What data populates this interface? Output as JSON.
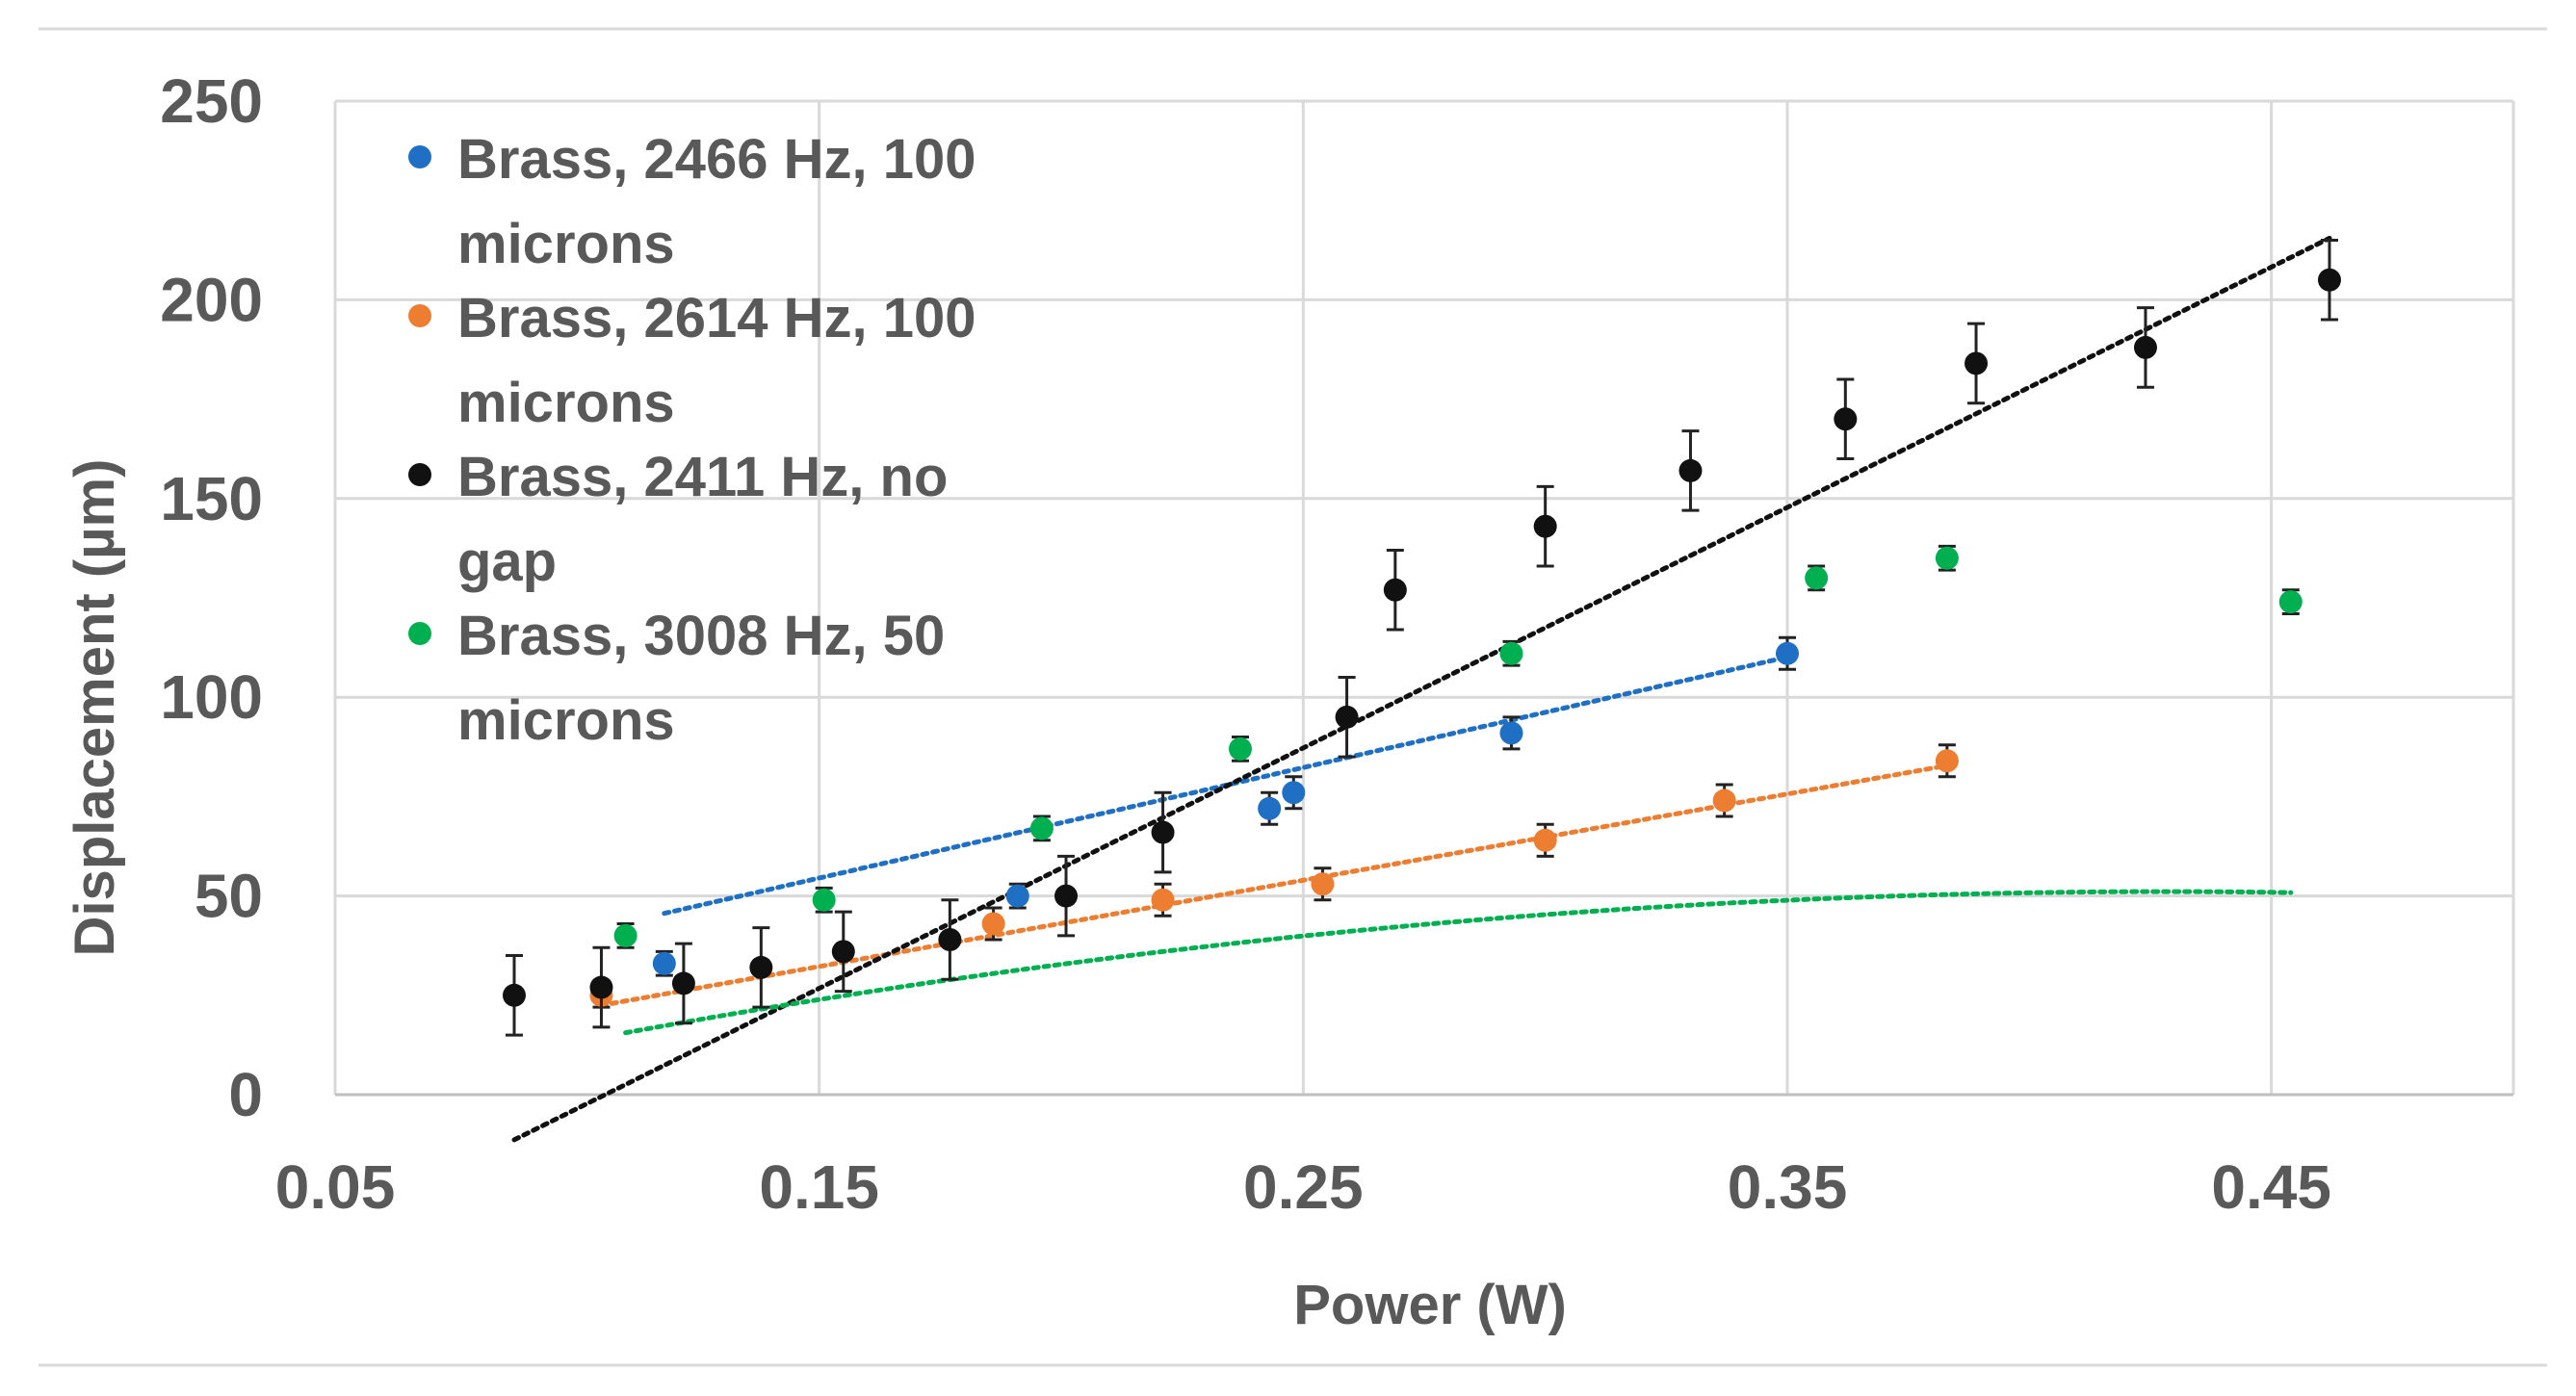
{
  "chart_data": {
    "type": "scatter",
    "title": "",
    "xlabel": "Power (W)",
    "ylabel": "Displacement (µm)",
    "xlim": [
      0.05,
      0.5
    ],
    "ylim": [
      0,
      250
    ],
    "xticks": [
      0.05,
      0.15,
      0.25,
      0.35,
      0.45
    ],
    "xtick_labels": [
      "0.05",
      "0.15",
      "0.25",
      "0.35",
      "0.45"
    ],
    "yticks": [
      0,
      50,
      100,
      150,
      200,
      250
    ],
    "ytick_labels": [
      "0",
      "50",
      "100",
      "150",
      "200",
      "250"
    ],
    "grid": true,
    "legend_position": "top-left",
    "series": [
      {
        "name": "Brass, 2466 Hz, 100 microns",
        "legend_lines": [
          "Brass, 2466 Hz, 100",
          "microns"
        ],
        "color": "#1f6fc5",
        "trend": "linear",
        "trend_range": [
          0.118,
          0.35
        ],
        "trend_coeffs": [
          12.8,
          278
        ],
        "points": [
          {
            "x": 0.118,
            "y": 33,
            "err": 3
          },
          {
            "x": 0.191,
            "y": 50,
            "err": 3
          },
          {
            "x": 0.243,
            "y": 72,
            "err": 4
          },
          {
            "x": 0.248,
            "y": 76,
            "err": 4
          },
          {
            "x": 0.293,
            "y": 91,
            "err": 4
          },
          {
            "x": 0.35,
            "y": 111,
            "err": 4
          }
        ]
      },
      {
        "name": "Brass, 2614 Hz, 100 microns",
        "legend_lines": [
          "Brass, 2614 Hz, 100",
          "microns"
        ],
        "color": "#ed7d31",
        "trend": "linear",
        "trend_range": [
          0.105,
          0.383
        ],
        "trend_coeffs": [
          -0.3,
          217
        ],
        "points": [
          {
            "x": 0.105,
            "y": 25,
            "err": 3
          },
          {
            "x": 0.186,
            "y": 43,
            "err": 4
          },
          {
            "x": 0.221,
            "y": 49,
            "err": 4
          },
          {
            "x": 0.254,
            "y": 53,
            "err": 4
          },
          {
            "x": 0.3,
            "y": 64,
            "err": 4
          },
          {
            "x": 0.337,
            "y": 74,
            "err": 4
          },
          {
            "x": 0.383,
            "y": 84,
            "err": 4
          }
        ]
      },
      {
        "name": "Brass, 2411 Hz, no gap",
        "legend_lines": [
          "Brass, 2411 Hz, no",
          "gap"
        ],
        "color": "#111111",
        "trend": "linear",
        "trend_range": [
          0.087,
          0.462
        ],
        "trend_coeffs": [
          -64,
          605
        ],
        "points": [
          {
            "x": 0.087,
            "y": 25,
            "err": 10
          },
          {
            "x": 0.105,
            "y": 27,
            "err": 10
          },
          {
            "x": 0.122,
            "y": 28,
            "err": 10
          },
          {
            "x": 0.138,
            "y": 32,
            "err": 10
          },
          {
            "x": 0.155,
            "y": 36,
            "err": 10
          },
          {
            "x": 0.177,
            "y": 39,
            "err": 10
          },
          {
            "x": 0.201,
            "y": 50,
            "err": 10
          },
          {
            "x": 0.221,
            "y": 66,
            "err": 10
          },
          {
            "x": 0.259,
            "y": 95,
            "err": 10
          },
          {
            "x": 0.269,
            "y": 127,
            "err": 10
          },
          {
            "x": 0.3,
            "y": 143,
            "err": 10
          },
          {
            "x": 0.33,
            "y": 157,
            "err": 10
          },
          {
            "x": 0.362,
            "y": 170,
            "err": 10
          },
          {
            "x": 0.389,
            "y": 184,
            "err": 10
          },
          {
            "x": 0.424,
            "y": 188,
            "err": 10
          },
          {
            "x": 0.462,
            "y": 205,
            "err": 10
          }
        ]
      },
      {
        "name": "Brass, 3008 Hz, 50 microns",
        "legend_lines": [
          "Brass, 3008 Hz, 50",
          "microns"
        ],
        "color": "#00b050",
        "trend": "polynomial",
        "trend_range": [
          0.11,
          0.454
        ],
        "trend_coeffs": [
          -13.2,
          300,
          -350
        ],
        "points": [
          {
            "x": 0.11,
            "y": 40,
            "err": 3
          },
          {
            "x": 0.151,
            "y": 49,
            "err": 3
          },
          {
            "x": 0.196,
            "y": 67,
            "err": 3
          },
          {
            "x": 0.237,
            "y": 87,
            "err": 3
          },
          {
            "x": 0.293,
            "y": 111,
            "err": 3
          },
          {
            "x": 0.356,
            "y": 130,
            "err": 3
          },
          {
            "x": 0.383,
            "y": 135,
            "err": 3
          },
          {
            "x": 0.454,
            "y": 124,
            "err": 3
          }
        ]
      }
    ]
  }
}
